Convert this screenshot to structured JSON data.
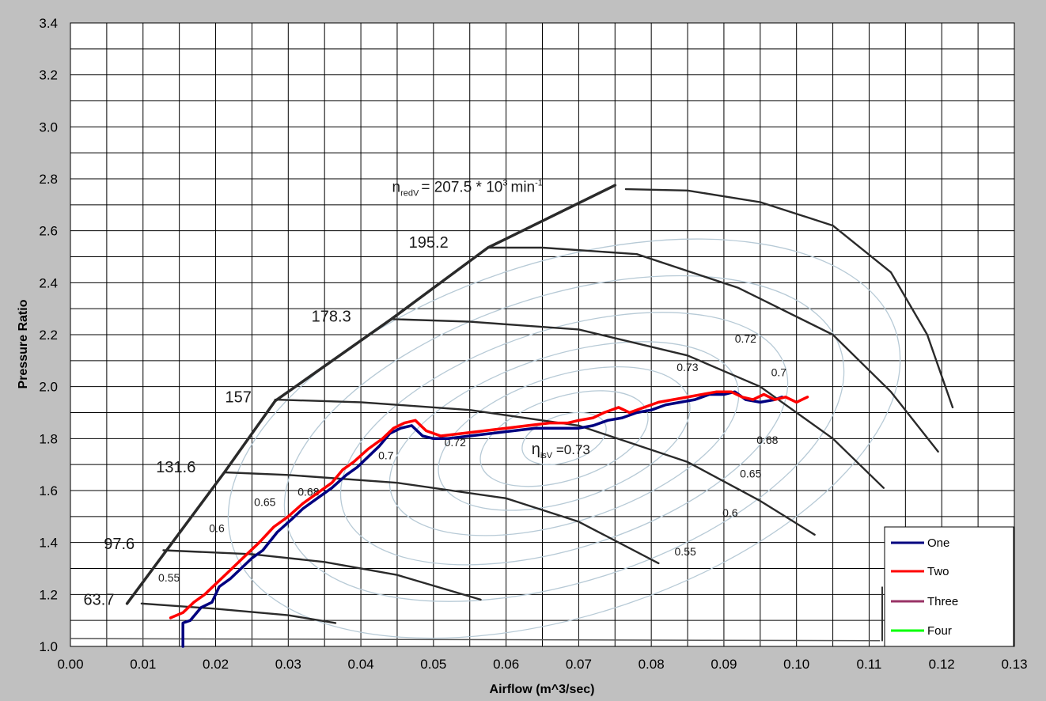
{
  "chart_data": {
    "type": "line",
    "xlabel": "Airflow (m^3/sec)",
    "ylabel": "Pressure Ratio",
    "xlim": [
      0,
      0.13
    ],
    "ylim": [
      1.0,
      3.4
    ],
    "x_ticks": [
      "0.00",
      "0.01",
      "0.02",
      "0.03",
      "0.04",
      "0.05",
      "0.06",
      "0.07",
      "0.08",
      "0.09",
      "0.10",
      "0.11",
      "0.12",
      "0.13"
    ],
    "y_ticks": [
      "1.0",
      "1.2",
      "1.4",
      "1.6",
      "1.8",
      "2.0",
      "2.2",
      "2.4",
      "2.6",
      "2.8",
      "3.0",
      "3.2",
      "3.4"
    ],
    "grid": true,
    "legend_position": "bottom-right",
    "series": [
      {
        "name": "One",
        "color": "#000080",
        "points": [
          [
            0.0155,
            1.0
          ],
          [
            0.0155,
            1.09
          ],
          [
            0.0165,
            1.1
          ],
          [
            0.018,
            1.15
          ],
          [
            0.0195,
            1.17
          ],
          [
            0.0205,
            1.23
          ],
          [
            0.022,
            1.26
          ],
          [
            0.0235,
            1.3
          ],
          [
            0.025,
            1.34
          ],
          [
            0.0265,
            1.37
          ],
          [
            0.0285,
            1.44
          ],
          [
            0.0305,
            1.49
          ],
          [
            0.032,
            1.53
          ],
          [
            0.034,
            1.57
          ],
          [
            0.036,
            1.61
          ],
          [
            0.038,
            1.66
          ],
          [
            0.0395,
            1.69
          ],
          [
            0.041,
            1.73
          ],
          [
            0.0425,
            1.77
          ],
          [
            0.044,
            1.82
          ],
          [
            0.0455,
            1.84
          ],
          [
            0.047,
            1.85
          ],
          [
            0.0485,
            1.81
          ],
          [
            0.05,
            1.8
          ],
          [
            0.052,
            1.8
          ],
          [
            0.055,
            1.81
          ],
          [
            0.058,
            1.82
          ],
          [
            0.061,
            1.83
          ],
          [
            0.064,
            1.84
          ],
          [
            0.067,
            1.84
          ],
          [
            0.07,
            1.84
          ],
          [
            0.072,
            1.85
          ],
          [
            0.074,
            1.87
          ],
          [
            0.076,
            1.88
          ],
          [
            0.078,
            1.9
          ],
          [
            0.08,
            1.91
          ],
          [
            0.082,
            1.93
          ],
          [
            0.084,
            1.94
          ],
          [
            0.086,
            1.95
          ],
          [
            0.088,
            1.97
          ],
          [
            0.09,
            1.97
          ],
          [
            0.0915,
            1.98
          ],
          [
            0.093,
            1.95
          ],
          [
            0.095,
            1.94
          ],
          [
            0.097,
            1.95
          ],
          [
            0.098,
            1.96
          ]
        ]
      },
      {
        "name": "Two",
        "color": "#ff0000",
        "points": [
          [
            0.0138,
            1.11
          ],
          [
            0.0155,
            1.13
          ],
          [
            0.017,
            1.17
          ],
          [
            0.0185,
            1.2
          ],
          [
            0.02,
            1.24
          ],
          [
            0.0215,
            1.28
          ],
          [
            0.023,
            1.32
          ],
          [
            0.0245,
            1.36
          ],
          [
            0.026,
            1.4
          ],
          [
            0.028,
            1.46
          ],
          [
            0.03,
            1.5
          ],
          [
            0.032,
            1.55
          ],
          [
            0.034,
            1.59
          ],
          [
            0.036,
            1.63
          ],
          [
            0.0375,
            1.68
          ],
          [
            0.039,
            1.71
          ],
          [
            0.041,
            1.76
          ],
          [
            0.043,
            1.8
          ],
          [
            0.0445,
            1.84
          ],
          [
            0.046,
            1.86
          ],
          [
            0.0475,
            1.87
          ],
          [
            0.049,
            1.83
          ],
          [
            0.051,
            1.81
          ],
          [
            0.054,
            1.82
          ],
          [
            0.057,
            1.83
          ],
          [
            0.06,
            1.84
          ],
          [
            0.063,
            1.85
          ],
          [
            0.066,
            1.86
          ],
          [
            0.0685,
            1.86
          ],
          [
            0.07,
            1.87
          ],
          [
            0.072,
            1.88
          ],
          [
            0.0735,
            1.9
          ],
          [
            0.0755,
            1.92
          ],
          [
            0.077,
            1.9
          ],
          [
            0.079,
            1.92
          ],
          [
            0.081,
            1.94
          ],
          [
            0.083,
            1.95
          ],
          [
            0.085,
            1.96
          ],
          [
            0.087,
            1.97
          ],
          [
            0.089,
            1.98
          ],
          [
            0.091,
            1.98
          ],
          [
            0.0925,
            1.96
          ],
          [
            0.094,
            1.95
          ],
          [
            0.0955,
            1.97
          ],
          [
            0.097,
            1.95
          ],
          [
            0.0985,
            1.96
          ],
          [
            0.1,
            1.94
          ],
          [
            0.1015,
            1.96
          ]
        ]
      },
      {
        "name": "Three",
        "color": "#993366",
        "points": []
      },
      {
        "name": "Four",
        "color": "#00ff00",
        "points": []
      }
    ],
    "compressor_map": {
      "speed_lines": [
        {
          "label": "63.7",
          "points": [
            [
              0.0098,
              1.165
            ],
            [
              0.02,
              1.145
            ],
            [
              0.03,
              1.12
            ],
            [
              0.0365,
              1.09
            ]
          ]
        },
        {
          "label": "97.6",
          "points": [
            [
              0.0128,
              1.37
            ],
            [
              0.025,
              1.355
            ],
            [
              0.035,
              1.325
            ],
            [
              0.045,
              1.275
            ],
            [
              0.0565,
              1.18
            ]
          ]
        },
        {
          "label": "131.6",
          "points": [
            [
              0.0212,
              1.67
            ],
            [
              0.03,
              1.66
            ],
            [
              0.045,
              1.63
            ],
            [
              0.06,
              1.57
            ],
            [
              0.07,
              1.48
            ],
            [
              0.081,
              1.32
            ]
          ]
        },
        {
          "label": "157",
          "points": [
            [
              0.0282,
              1.95
            ],
            [
              0.04,
              1.94
            ],
            [
              0.055,
              1.91
            ],
            [
              0.07,
              1.85
            ],
            [
              0.085,
              1.71
            ],
            [
              0.095,
              1.56
            ],
            [
              0.1025,
              1.43
            ]
          ]
        },
        {
          "label": "178.3",
          "points": [
            [
              0.0442,
              2.26
            ],
            [
              0.055,
              2.25
            ],
            [
              0.07,
              2.22
            ],
            [
              0.085,
              2.12
            ],
            [
              0.095,
              2.0
            ],
            [
              0.105,
              1.8
            ],
            [
              0.112,
              1.61
            ]
          ]
        },
        {
          "label": "195.2",
          "points": [
            [
              0.0575,
              2.535
            ],
            [
              0.065,
              2.535
            ],
            [
              0.078,
              2.51
            ],
            [
              0.092,
              2.38
            ],
            [
              0.105,
              2.2
            ],
            [
              0.113,
              1.98
            ],
            [
              0.1195,
              1.75
            ]
          ]
        },
        {
          "label": "207.5",
          "points": [
            [
              0.0765,
              2.76
            ],
            [
              0.085,
              2.755
            ],
            [
              0.095,
              2.71
            ],
            [
              0.105,
              2.62
            ],
            [
              0.113,
              2.44
            ],
            [
              0.118,
              2.2
            ],
            [
              0.1215,
              1.92
            ]
          ]
        }
      ],
      "surge_line": [
        [
          0.0078,
          1.165
        ],
        [
          0.0212,
          1.67
        ],
        [
          0.0282,
          1.945
        ],
        [
          0.0442,
          2.26
        ],
        [
          0.0575,
          2.535
        ],
        [
          0.075,
          2.775
        ]
      ],
      "speed_labels": [
        "63.7",
        "97.6",
        "131.6",
        "157",
        "178.3",
        "195.2"
      ],
      "top_speed_label": "n",
      "top_speed_sub": "redV",
      "top_speed_text": "= 207.5 * 10",
      "top_speed_exp": "3",
      "top_speed_unit": "min",
      "top_speed_unit_exp": "-1",
      "efficiency_symbol": "η",
      "efficiency_sub": "isV",
      "efficiency_text": " =0.73",
      "efficiency_labels": [
        "0.55",
        "0.6",
        "0.65",
        "0.68",
        "0.7",
        "0.72",
        "0.73",
        "0.72",
        "0.7",
        "0.68",
        "0.65",
        "0.6",
        "0.55"
      ]
    }
  }
}
